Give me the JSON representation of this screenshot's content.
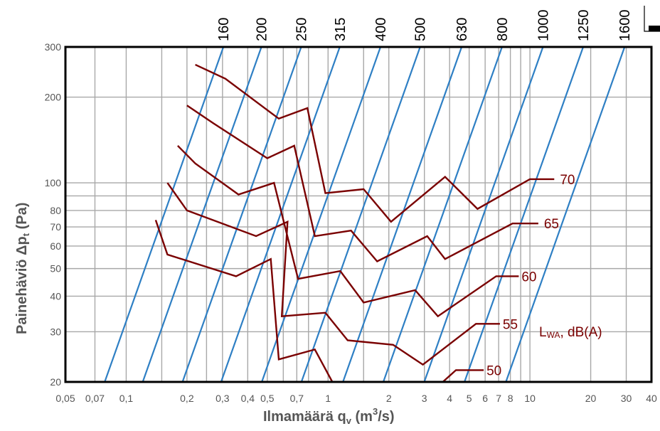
{
  "chart_data": {
    "type": "line",
    "title": "",
    "xlabel": "Ilmamäärä  q",
    "xlabel_sub": "v",
    "xlabel_unit_open": " (m",
    "xlabel_sup": "3",
    "xlabel_unit_close": "/s)",
    "ylabel": "Painehäviö  Δp",
    "ylabel_sub": "t",
    "ylabel_unit": " (Pa)",
    "x_scale": "log",
    "y_scale": "log",
    "xlim": [
      0.05,
      40
    ],
    "ylim": [
      20,
      300
    ],
    "grid": true,
    "x_ticks": [
      {
        "v": 0.05,
        "label": "0,05"
      },
      {
        "v": 0.07,
        "label": "0,07"
      },
      {
        "v": 0.1,
        "label": "0,1"
      },
      {
        "v": 0.2,
        "label": "0,2"
      },
      {
        "v": 0.3,
        "label": "0,3"
      },
      {
        "v": 0.4,
        "label": "0,4"
      },
      {
        "v": 0.5,
        "label": "0,5"
      },
      {
        "v": 0.7,
        "label": "0,7"
      },
      {
        "v": 1,
        "label": "1"
      },
      {
        "v": 2,
        "label": "2"
      },
      {
        "v": 3,
        "label": "3"
      },
      {
        "v": 4,
        "label": "4"
      },
      {
        "v": 5,
        "label": "5"
      },
      {
        "v": 6,
        "label": "6"
      },
      {
        "v": 7,
        "label": "7"
      },
      {
        "v": 8,
        "label": "8"
      },
      {
        "v": 10,
        "label": "10"
      },
      {
        "v": 20,
        "label": "20"
      },
      {
        "v": 30,
        "label": "30"
      },
      {
        "v": 40,
        "label": "40"
      }
    ],
    "x_gridlines": [
      0.07,
      0.1,
      0.15,
      0.2,
      0.25,
      0.3,
      0.4,
      0.5,
      0.6,
      0.7,
      0.8,
      1,
      1.5,
      2,
      3,
      4,
      5,
      6,
      7,
      8,
      9,
      10,
      20,
      30
    ],
    "y_ticks": [
      {
        "v": 20,
        "label": "20"
      },
      {
        "v": 30,
        "label": "30"
      },
      {
        "v": 40,
        "label": "40"
      },
      {
        "v": 50,
        "label": "50"
      },
      {
        "v": 60,
        "label": "60"
      },
      {
        "v": 70,
        "label": "70"
      },
      {
        "v": 80,
        "label": "80"
      },
      {
        "v": 100,
        "label": "100"
      },
      {
        "v": 200,
        "label": "200"
      },
      {
        "v": 300,
        "label": "300"
      }
    ],
    "y_gridlines": [
      20,
      30,
      40,
      50,
      60,
      70,
      80,
      90,
      100,
      200,
      300
    ],
    "duct_sizes": [
      {
        "label": "160",
        "x_at_100": 0.175
      },
      {
        "label": "200",
        "x_at_100": 0.27
      },
      {
        "label": "250",
        "x_at_100": 0.425
      },
      {
        "label": "315",
        "x_at_100": 0.66
      },
      {
        "label": "400",
        "x_at_100": 1.05
      },
      {
        "label": "500",
        "x_at_100": 1.65
      },
      {
        "label": "630",
        "x_at_100": 2.65
      },
      {
        "label": "800",
        "x_at_100": 4.2
      },
      {
        "label": "1000",
        "x_at_100": 6.7
      },
      {
        "label": "1250",
        "x_at_100": 10.6
      },
      {
        "label": "1600",
        "x_at_100": 17.0
      }
    ],
    "series": [
      {
        "name": "70",
        "points": [
          [
            0.22,
            260
          ],
          [
            0.31,
            232
          ],
          [
            0.57,
            168
          ],
          [
            0.79,
            183
          ],
          [
            0.97,
            92
          ],
          [
            1.5,
            95
          ],
          [
            2.05,
            73
          ],
          [
            3.8,
            105
          ],
          [
            5.5,
            81
          ],
          [
            10,
            103
          ],
          [
            13.2,
            103
          ]
        ]
      },
      {
        "name": "65",
        "points": [
          [
            0.2,
            187
          ],
          [
            0.27,
            162
          ],
          [
            0.5,
            122
          ],
          [
            0.68,
            135
          ],
          [
            0.86,
            65
          ],
          [
            1.3,
            68
          ],
          [
            1.75,
            53
          ],
          [
            3.1,
            65
          ],
          [
            3.8,
            54
          ],
          [
            8.2,
            72
          ],
          [
            11,
            72
          ]
        ]
      },
      {
        "name": "60",
        "points": [
          [
            0.18,
            135
          ],
          [
            0.22,
            117
          ],
          [
            0.36,
            91
          ],
          [
            0.54,
            100
          ],
          [
            0.71,
            46
          ],
          [
            1.15,
            49
          ],
          [
            1.5,
            38
          ],
          [
            2.7,
            42
          ],
          [
            3.5,
            34
          ],
          [
            6.8,
            47
          ],
          [
            8.8,
            47
          ]
        ]
      },
      {
        "name": "55",
        "points": [
          [
            0.16,
            100
          ],
          [
            0.2,
            80
          ],
          [
            0.44,
            65
          ],
          [
            0.63,
            73
          ],
          [
            0.59,
            34
          ],
          [
            0.97,
            35
          ],
          [
            1.25,
            28
          ],
          [
            2.1,
            27
          ],
          [
            2.95,
            23
          ],
          [
            5.4,
            32
          ],
          [
            7.1,
            32
          ]
        ]
      },
      {
        "name": "50",
        "points": [
          [
            0.14,
            74
          ],
          [
            0.16,
            56
          ],
          [
            0.35,
            47
          ],
          [
            0.52,
            54
          ],
          [
            0.57,
            24
          ],
          [
            0.86,
            26
          ],
          [
            1.05,
            20
          ]
        ],
        "tail": [
          [
            3.7,
            20
          ],
          [
            4.3,
            22
          ],
          [
            5.9,
            22
          ]
        ]
      }
    ],
    "lwa_unit": "dB(A)",
    "lwa_prefix": "L",
    "lwa_sub": "WA",
    "lwa_sep": ", ",
    "colors": {
      "duct_lines": "#2e7fc4",
      "sound_lines": "#7a0000",
      "grid": "#a8a8a8",
      "text": "#555555"
    }
  }
}
